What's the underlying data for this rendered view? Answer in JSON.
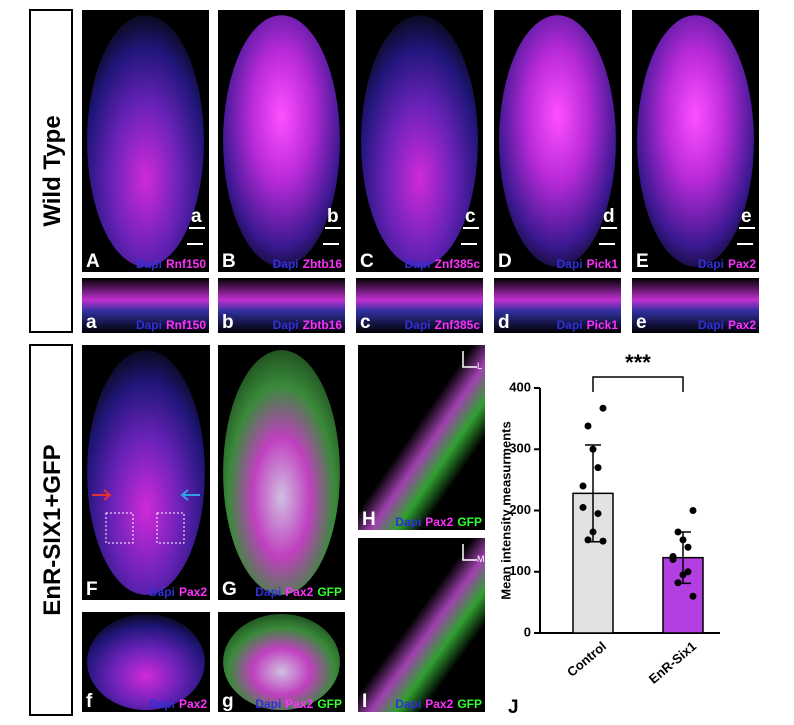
{
  "figure": {
    "row_labels": [
      "Wild Type",
      "EnR-SIX1+GFP"
    ],
    "panels": [
      {
        "letter": "A",
        "inset": "a",
        "stains": [
          {
            "text": "Dapi",
            "color": "#3030d8"
          },
          {
            "text": "Rnf150",
            "color": "#ff30ff"
          }
        ]
      },
      {
        "letter": "B",
        "inset": "b",
        "stains": [
          {
            "text": "Dapi",
            "color": "#3030d8"
          },
          {
            "text": "Zbtb16",
            "color": "#ff30ff"
          }
        ]
      },
      {
        "letter": "C",
        "inset": "c",
        "stains": [
          {
            "text": "Dapi",
            "color": "#3030d8"
          },
          {
            "text": "Znf385c",
            "color": "#ff30ff"
          }
        ]
      },
      {
        "letter": "D",
        "inset": "d",
        "stains": [
          {
            "text": "Dapi",
            "color": "#3030d8"
          },
          {
            "text": "Pick1",
            "color": "#ff30ff"
          }
        ]
      },
      {
        "letter": "E",
        "inset": "e",
        "stains": [
          {
            "text": "Dapi",
            "color": "#3030d8"
          },
          {
            "text": "Pax2",
            "color": "#ff30ff"
          }
        ]
      },
      {
        "letter": "a",
        "stains": [
          {
            "text": "Dapi",
            "color": "#3030d8"
          },
          {
            "text": "Rnf150",
            "color": "#ff30ff"
          }
        ]
      },
      {
        "letter": "b",
        "stains": [
          {
            "text": "Dapi",
            "color": "#3030d8"
          },
          {
            "text": "Zbtb16",
            "color": "#ff30ff"
          }
        ]
      },
      {
        "letter": "c",
        "stains": [
          {
            "text": "Dapi",
            "color": "#3030d8"
          },
          {
            "text": "Znf385c",
            "color": "#ff30ff"
          }
        ]
      },
      {
        "letter": "d",
        "stains": [
          {
            "text": "Dapi",
            "color": "#3030d8"
          },
          {
            "text": "Pick1",
            "color": "#ff30ff"
          }
        ]
      },
      {
        "letter": "e",
        "stains": [
          {
            "text": "Dapi",
            "color": "#3030d8"
          },
          {
            "text": "Pax2",
            "color": "#ff30ff"
          }
        ]
      },
      {
        "letter": "F",
        "stains": [
          {
            "text": "Dapi",
            "color": "#3030d8"
          },
          {
            "text": "Pax2",
            "color": "#ff30ff"
          }
        ]
      },
      {
        "letter": "G",
        "stains": [
          {
            "text": "Dapi",
            "color": "#3030d8"
          },
          {
            "text": "Pax2",
            "color": "#ff30ff"
          },
          {
            "text": "GFP",
            "color": "#30ff30"
          }
        ]
      },
      {
        "letter": "H",
        "orientation": "L",
        "stains": [
          {
            "text": "Dapi",
            "color": "#3030d8"
          },
          {
            "text": "Pax2",
            "color": "#ff30ff"
          },
          {
            "text": "GFP",
            "color": "#30ff30"
          }
        ]
      },
      {
        "letter": "I",
        "orientation": "M",
        "stains": [
          {
            "text": "Dapi",
            "color": "#3030d8"
          },
          {
            "text": "Pax2",
            "color": "#ff30ff"
          },
          {
            "text": "GFP",
            "color": "#30ff30"
          }
        ]
      },
      {
        "letter": "f",
        "stains": [
          {
            "text": "Dapi",
            "color": "#3030d8"
          },
          {
            "text": "Pax2",
            "color": "#ff30ff"
          }
        ]
      },
      {
        "letter": "g",
        "stains": [
          {
            "text": "Dapi",
            "color": "#3030d8"
          },
          {
            "text": "Pax2",
            "color": "#ff30ff"
          },
          {
            "text": "GFP",
            "color": "#30ff30"
          }
        ]
      }
    ]
  },
  "chart_data": {
    "type": "bar",
    "panel_label": "J",
    "ylabel": "Mean intensity measurments",
    "categories": [
      "Control",
      "EnR-Six1"
    ],
    "values": [
      228,
      123
    ],
    "errors": [
      79,
      42
    ],
    "colors": [
      "#e2e2e2",
      "#b43fe0"
    ],
    "points": [
      [
        367,
        338,
        300,
        270,
        240,
        205,
        195,
        165,
        152,
        150
      ],
      [
        200,
        165,
        152,
        140,
        125,
        120,
        100,
        95,
        82,
        60
      ]
    ],
    "significance": "***",
    "ylim": [
      0,
      400
    ],
    "yticks": [
      0,
      100,
      200,
      300,
      400
    ]
  }
}
